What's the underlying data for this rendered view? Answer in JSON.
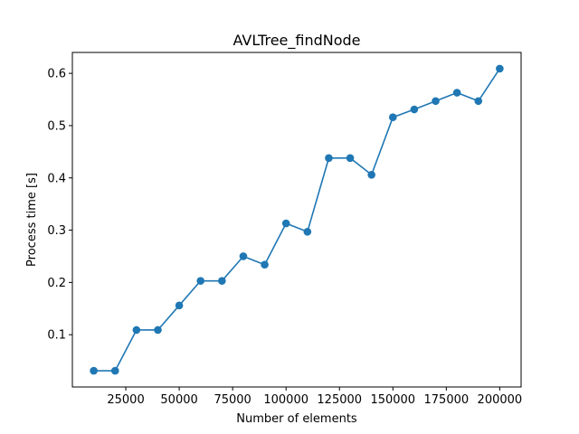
{
  "chart_data": {
    "type": "line",
    "title": "AVLTree_findNode",
    "xlabel": "Number of elements",
    "ylabel": "Process time [s]",
    "xlim": [
      0,
      210000
    ],
    "ylim": [
      0.0,
      0.64
    ],
    "xticks": [
      25000,
      50000,
      75000,
      100000,
      125000,
      150000,
      175000,
      200000
    ],
    "yticks": [
      0.1,
      0.2,
      0.3,
      0.4,
      0.5,
      0.6
    ],
    "xtick_labels": [
      "25000",
      "50000",
      "75000",
      "100000",
      "125000",
      "150000",
      "175000",
      "200000"
    ],
    "ytick_labels": [
      "0.1",
      "0.2",
      "0.3",
      "0.4",
      "0.5",
      "0.6"
    ],
    "grid": false,
    "legend": false,
    "color": "#1f77b4",
    "marker": "circle",
    "x": [
      10000,
      20000,
      30000,
      40000,
      50000,
      60000,
      70000,
      80000,
      90000,
      100000,
      110000,
      120000,
      130000,
      140000,
      150000,
      160000,
      170000,
      180000,
      190000,
      200000
    ],
    "y": [
      0.031,
      0.031,
      0.109,
      0.109,
      0.156,
      0.203,
      0.203,
      0.25,
      0.234,
      0.313,
      0.297,
      0.438,
      0.438,
      0.406,
      0.516,
      0.531,
      0.547,
      0.563,
      0.547,
      0.609
    ]
  }
}
